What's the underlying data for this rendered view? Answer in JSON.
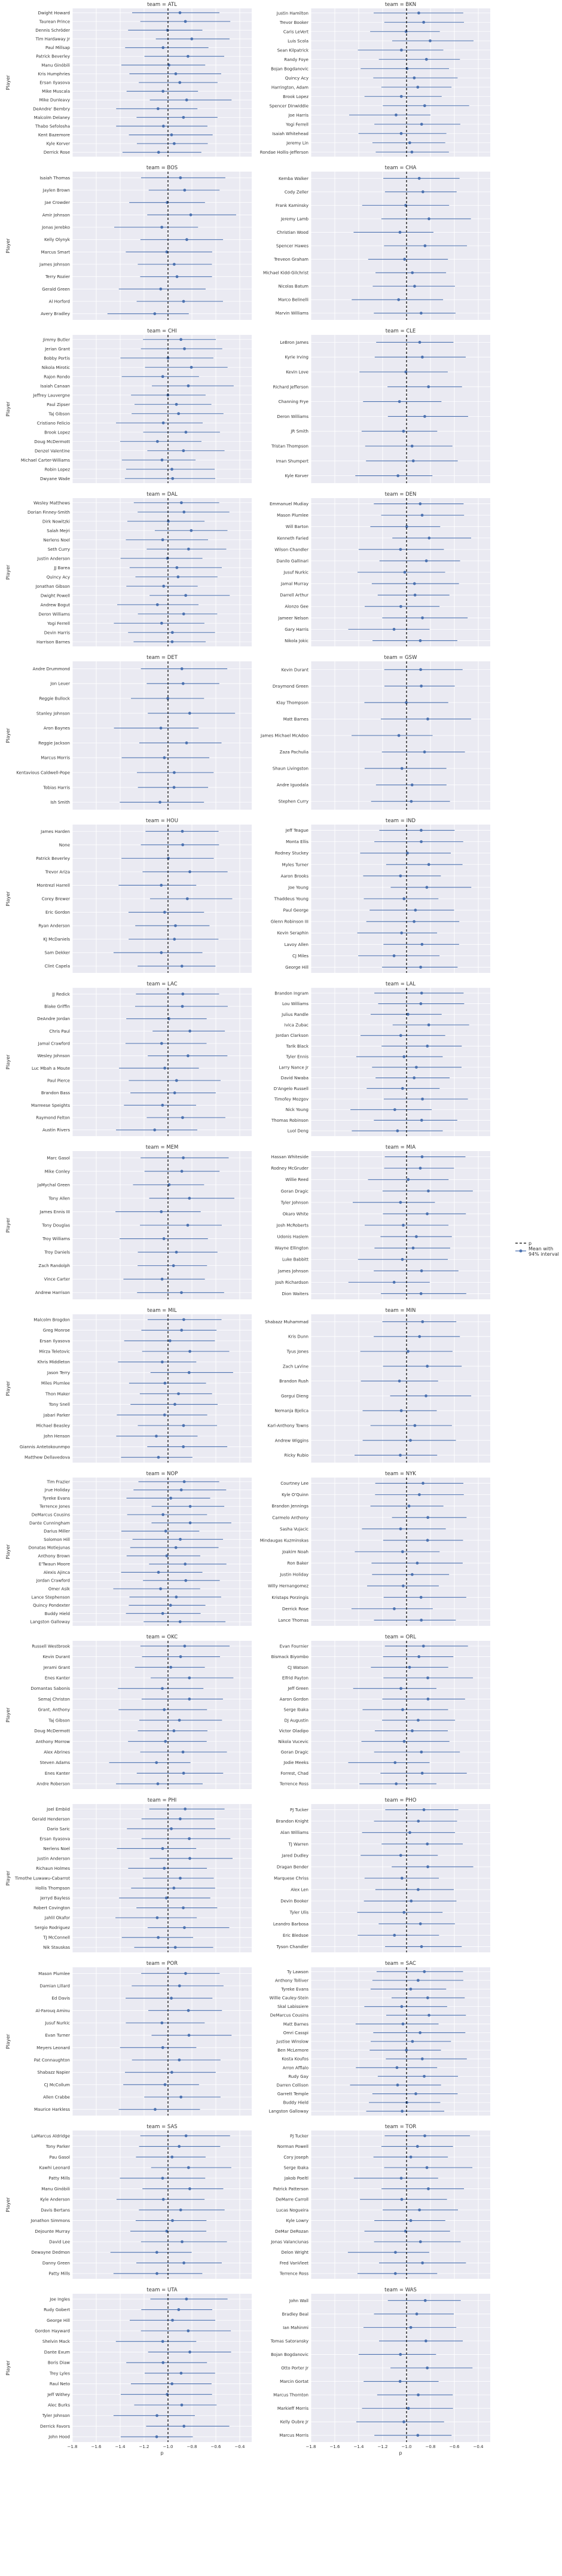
{
  "figure": {
    "xlabel": "p",
    "ylabel": "Player",
    "facet_prefix": "team = ",
    "xlim": [
      -1.8,
      -0.3
    ],
    "xticks": [
      -1.8,
      -1.6,
      -1.4,
      -1.2,
      -1.0,
      -0.8,
      -0.6,
      -0.4
    ],
    "reference_line_x": -1.0,
    "legend": {
      "line_label": "p",
      "band_label_1": "Mean with",
      "band_label_2": "94% interval"
    },
    "colors": {
      "panel_bg": "#eaeaf2",
      "grid": "#ffffff",
      "point": "#4c72b0",
      "ref_line": "#000000",
      "text": "#333333"
    }
  },
  "chart_data": {
    "type": "forest",
    "panels": [
      {
        "team": "ATL",
        "players": [
          "Dwight Howard",
          "Taurean Prince",
          "Dennis Schröder",
          "Tim Hardaway Jr",
          "Paul Millsap",
          "Patrick Beverley",
          "Manu Ginóbili",
          "Kris Humphries",
          "Ersan Ilyasova",
          "Mike Muscala",
          "Mike Dunleavy",
          "DeAndre' Bembry",
          "Malcolm Delaney",
          "Thabo Sefolosha",
          "Kent Bazemore",
          "Kyle Korver",
          "Derrick Rose"
        ]
      },
      {
        "team": "BKN",
        "players": [
          "Justin Hamilton",
          "Trevor Booker",
          "Caris LeVert",
          "Luis Scola",
          "Sean Kilpatrick",
          "Randy Foye",
          "Bojan Bogdanovic",
          "Quincy Acy",
          "Harrington, Adam",
          "Brook Lopez",
          "Spencer Dinwiddie",
          "Joe Harris",
          "Yogi Ferrell",
          "Isaiah Whitehead",
          "Jeremy Lin",
          "Rondae Hollis-Jefferson"
        ]
      },
      {
        "team": "BOS",
        "players": [
          "Isaiah Thomas",
          "Jaylen Brown",
          "Jae Crowder",
          "Amir Johnson",
          "Jonas Jerebko",
          "Kelly Olynyk",
          "Marcus Smart",
          "James Johnson",
          "Terry Rozier",
          "Gerald Green",
          "Al Horford",
          "Avery Bradley"
        ]
      },
      {
        "team": "CHA",
        "players": [
          "Kemba Walker",
          "Cody Zeller",
          "Frank Kaminsky",
          "Jeremy Lamb",
          "Christian Wood",
          "Spencer Hawes",
          "Treveon Graham",
          "Michael Kidd-Gilchrist",
          "Nicolas Batum",
          "Marco Belinelli",
          "Marvin Williams"
        ]
      },
      {
        "team": "CHI",
        "players": [
          "Jimmy Butler",
          "Jerian Grant",
          "Bobby Portis",
          "Nikola Mirotic",
          "Rajon Rondo",
          "Isaiah Canaan",
          "Jeffrey Lauvergne",
          "Paul Zipser",
          "Taj Gibson",
          "Cristiano Felicio",
          "Brook Lopez",
          "Doug McDermott",
          "Denzel Valentine",
          "Michael Carter-Williams",
          "Robin Lopez",
          "Dwyane Wade"
        ]
      },
      {
        "team": "CLE",
        "players": [
          "LeBron James",
          "Kyrie Irving",
          "Kevin Love",
          "Richard Jefferson",
          "Channing Frye",
          "Deron Williams",
          "JR Smith",
          "Tristan Thompson",
          "Iman Shumpert",
          "Kyle Korver"
        ]
      },
      {
        "team": "DAL",
        "players": [
          "Wesley Matthews",
          "Dorian Finney-Smith",
          "Dirk Nowitzki",
          "Salah Mejri",
          "Nerlens Noel",
          "Seth Curry",
          "Justin Anderson",
          "JJ Barea",
          "Quincy Acy",
          "Jonathan Gibson",
          "Dwight Powell",
          "Andrew Bogut",
          "Deron Williams",
          "Yogi Ferrell",
          "Devin Harris",
          "Harrison Barnes"
        ]
      },
      {
        "team": "DEN",
        "players": [
          "Emmanuel Mudiay",
          "Mason Plumlee",
          "Will Barton",
          "Kenneth Faried",
          "Wilson Chandler",
          "Danilo Gallinari",
          "Jusuf Nurkic",
          "Jamal Murray",
          "Darrell Arthur",
          "Alonzo Gee",
          "Jameer Nelson",
          "Gary Harris",
          "Nikola Jokic"
        ]
      },
      {
        "team": "DET",
        "players": [
          "Andre Drummond",
          "Jon Leuer",
          "Reggie Bullock",
          "Stanley Johnson",
          "Aron Baynes",
          "Reggie Jackson",
          "Marcus Morris",
          "Kentavious Caldwell-Pope",
          "Tobias Harris",
          "Ish Smith"
        ]
      },
      {
        "team": "GSW",
        "players": [
          "Kevin Durant",
          "Draymond Green",
          "Klay Thompson",
          "Matt Barnes",
          "James Michael McAdoo",
          "Zaza Pachulia",
          "Shaun Livingston",
          "Andre Iguodala",
          "Stephen Curry"
        ]
      },
      {
        "team": "HOU",
        "players": [
          "James Harden",
          "None",
          "Patrick Beverley",
          "Trevor Ariza",
          "Montrezl Harrell",
          "Corey Brewer",
          "Eric Gordon",
          "Ryan Anderson",
          "KJ McDaniels",
          "Sam Dekker",
          "Clint Capela"
        ]
      },
      {
        "team": "IND",
        "players": [
          "Jeff Teague",
          "Monta Ellis",
          "Rodney Stuckey",
          "Myles Turner",
          "Aaron Brooks",
          "Joe Young",
          "Thaddeus Young",
          "Paul George",
          "Glenn Robinson III",
          "Kevin Seraphin",
          "Lavoy Allen",
          "CJ Miles",
          "George Hill"
        ]
      },
      {
        "team": "LAC",
        "players": [
          "JJ Redick",
          "Blake Griffin",
          "DeAndre Jordan",
          "Chris Paul",
          "Jamal Crawford",
          "Wesley Johnson",
          "Luc Mbah a Moute",
          "Paul Pierce",
          "Brandon Bass",
          "Marreese Speights",
          "Raymond Felton",
          "Austin Rivers"
        ]
      },
      {
        "team": "LAL",
        "players": [
          "Brandon Ingram",
          "Lou Williams",
          "Julius Randle",
          "Ivica Zubac",
          "Jordan Clarkson",
          "Tarik Black",
          "Tyler Ennis",
          "Larry Nance Jr",
          "David Nwaba",
          "D'Angelo Russell",
          "Timofey Mozgov",
          "Nick Young",
          "Thomas Robinson",
          "Luol Deng"
        ]
      },
      {
        "team": "MEM",
        "players": [
          "Marc Gasol",
          "Mike Conley",
          "JaMychal Green",
          "Tony Allen",
          "James Ennis III",
          "Tony Douglas",
          "Troy Williams",
          "Troy Daniels",
          "Zach Randolph",
          "Vince Carter",
          "Andrew Harrison"
        ]
      },
      {
        "team": "MIA",
        "players": [
          "Hassan Whiteside",
          "Rodney McGruder",
          "Willie Reed",
          "Goran Dragic",
          "Tyler Johnson",
          "Okaro White",
          "Josh McRoberts",
          "Udonis Haslem",
          "Wayne Ellington",
          "Luke Babbitt",
          "James Johnson",
          "Josh Richardson",
          "Dion Waiters"
        ]
      },
      {
        "team": "MIL",
        "players": [
          "Malcolm Brogdon",
          "Greg Monroe",
          "Ersan Ilyasova",
          "Mirza Teletovic",
          "Khris Middleton",
          "Jason Terry",
          "Miles Plumlee",
          "Thon Maker",
          "Tony Snell",
          "Jabari Parker",
          "Michael Beasley",
          "John Henson",
          "Giannis Antetokounmpo",
          "Matthew Dellavedova"
        ]
      },
      {
        "team": "MIN",
        "players": [
          "Shabazz Muhammad",
          "Kris Dunn",
          "Tyus Jones",
          "Zach LaVine",
          "Brandon Rush",
          "Gorgui Dieng",
          "Nemanja Bjelica",
          "Karl-Anthony Towns",
          "Andrew Wiggins",
          "Ricky Rubio"
        ]
      },
      {
        "team": "NOP",
        "players": [
          "Tim Frazier",
          "Jrue Holiday",
          "Tyreke Evans",
          "Terrence Jones",
          "DeMarcus Cousins",
          "Dante Cunningham",
          "Darius Miller",
          "Solomon Hill",
          "Donatas Motiejunas",
          "Anthony Brown",
          "E'Twaun Moore",
          "Alexis Ajinca",
          "Jordan Crawford",
          "Omer Asik",
          "Lance Stephenson",
          "Quincy Pondexter",
          "Buddy Hield",
          "Langston Galloway"
        ]
      },
      {
        "team": "NYK",
        "players": [
          "Courtney Lee",
          "Kyle O'Quinn",
          "Brandon Jennings",
          "Carmelo Anthony",
          "Sasha Vujacic",
          "Mindaugas Kuzminskas",
          "Joakim Noah",
          "Ron Baker",
          "Justin Holiday",
          "Willy Hernangomez",
          "Kristaps Porzingis",
          "Derrick Rose",
          "Lance Thomas"
        ]
      },
      {
        "team": "OKC",
        "players": [
          "Russell Westbrook",
          "Kevin Durant",
          "Jerami Grant",
          "Enes Kanter",
          "Domantas Sabonis",
          "Semaj Christon",
          "Grant, Anthony",
          "Taj Gibson",
          "Doug McDermott",
          "Anthony Morrow",
          "Alex Abrines",
          "Steven Adams",
          "Enes Kanter",
          "Andre Roberson"
        ]
      },
      {
        "team": "ORL",
        "players": [
          "Evan Fournier",
          "Bismack Biyombo",
          "CJ Watson",
          "Elfrid Payton",
          "Jeff Green",
          "Aaron Gordon",
          "Serge Ibaka",
          "DJ Augustin",
          "Victor Oladipo",
          "Nikola Vucevic",
          "Goran Dragic",
          "Jodie Meeks",
          "Forrest, Chad",
          "Terrence Ross"
        ]
      },
      {
        "team": "PHI",
        "players": [
          "Joel Embiid",
          "Gerald Henderson",
          "Dario Saric",
          "Ersan Ilyasova",
          "Nerlens Noel",
          "Justin Anderson",
          "Richaun Holmes",
          "Timothe Luwawu-Cabarrot",
          "Hollis Thompson",
          "Jerryd Bayless",
          "Robert Covington",
          "Jahlil Okafor",
          "Sergio Rodriguez",
          "TJ McConnell",
          "Nik Stauskas"
        ]
      },
      {
        "team": "PHO",
        "players": [
          "PJ Tucker",
          "Brandon Knight",
          "Alan Williams",
          "TJ Warren",
          "Jared Dudley",
          "Dragan Bender",
          "Marquese Chriss",
          "Alex Len",
          "Devin Booker",
          "Tyler Ulis",
          "Leandro Barbosa",
          "Eric Bledsoe",
          "Tyson Chandler"
        ]
      },
      {
        "team": "POR",
        "players": [
          "Mason Plumlee",
          "Damian Lillard",
          "Ed Davis",
          "Al-Farouq Aminu",
          "Jusuf Nurkic",
          "Evan Turner",
          "Meyers Leonard",
          "Pat Connaughton",
          "Shabazz Napier",
          "CJ McCollum",
          "Allen Crabbe",
          "Maurice Harkless"
        ]
      },
      {
        "team": "SAC",
        "players": [
          "Ty Lawson",
          "Anthony Tolliver",
          "Tyreke Evans",
          "Willie Cauley-Stein",
          "Skal Labissiere",
          "DeMarcus Cousins",
          "Matt Barnes",
          "Omri Casspi",
          "Justise Winslow",
          "Ben McLemore",
          "Kosta Koufos",
          "Arron Afflalo",
          "Rudy Gay",
          "Darren Collison",
          "Garrett Temple",
          "Buddy Hield",
          "Langston Galloway"
        ]
      },
      {
        "team": "SAS",
        "players": [
          "LaMarcus Aldridge",
          "Tony Parker",
          "Pau Gasol",
          "Kawhi Leonard",
          "Patty Mills",
          "Manu Ginóbili",
          "Kyle Anderson",
          "Davis Bertans",
          "Jonathon Simmons",
          "Dejounte Murray",
          "David Lee",
          "Dewayne Dedmon",
          "Danny Green",
          "Patty Mills"
        ]
      },
      {
        "team": "TOR",
        "players": [
          "PJ Tucker",
          "Norman Powell",
          "Cory Joseph",
          "Serge Ibaka",
          "Jakob Poeltl",
          "Patrick Patterson",
          "DeMarre Carroll",
          "Lucas Nogueira",
          "Kyle Lowry",
          "DeMar DeRozan",
          "Jonas Valanciunas",
          "Delon Wright",
          "Fred VanVleet",
          "Terrence Ross"
        ]
      },
      {
        "team": "UTA",
        "players": [
          "Joe Ingles",
          "Rudy Gobert",
          "George Hill",
          "Gordon Hayward",
          "Shelvin Mack",
          "Dante Exum",
          "Boris Diaw",
          "Trey Lyles",
          "Raul Neto",
          "Jeff Withey",
          "Alec Burks",
          "Tyler Johnson",
          "Derrick Favors",
          "John Hood"
        ]
      },
      {
        "team": "WAS",
        "players": [
          "John Wall",
          "Bradley Beal",
          "Ian Mahinmi",
          "Tomas Satoransky",
          "Bojan Bogdanovic",
          "Otto Porter Jr",
          "Marcin Gortat",
          "Marcus Thornton",
          "Markieff Morris",
          "Kelly Oubre Jr",
          "Marcus Morris"
        ]
      }
    ]
  }
}
